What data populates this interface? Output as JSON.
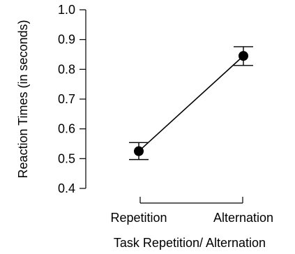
{
  "chart_data": {
    "type": "line",
    "xlabel": "Task Repetition/ Alternation",
    "ylabel": "Reaction Times (in seconds)",
    "categories": [
      "Repetition",
      "Alternation"
    ],
    "series": [
      {
        "values": [
          0.525,
          0.845
        ],
        "error_low": [
          0.497,
          0.813
        ],
        "error_high": [
          0.554,
          0.876
        ]
      }
    ],
    "ylim": [
      0.4,
      1.0
    ],
    "yticks": [
      "0.4",
      "0.5",
      "0.6",
      "0.7",
      "0.8",
      "0.9",
      "1.0"
    ],
    "grid": false,
    "color": "#000000"
  }
}
